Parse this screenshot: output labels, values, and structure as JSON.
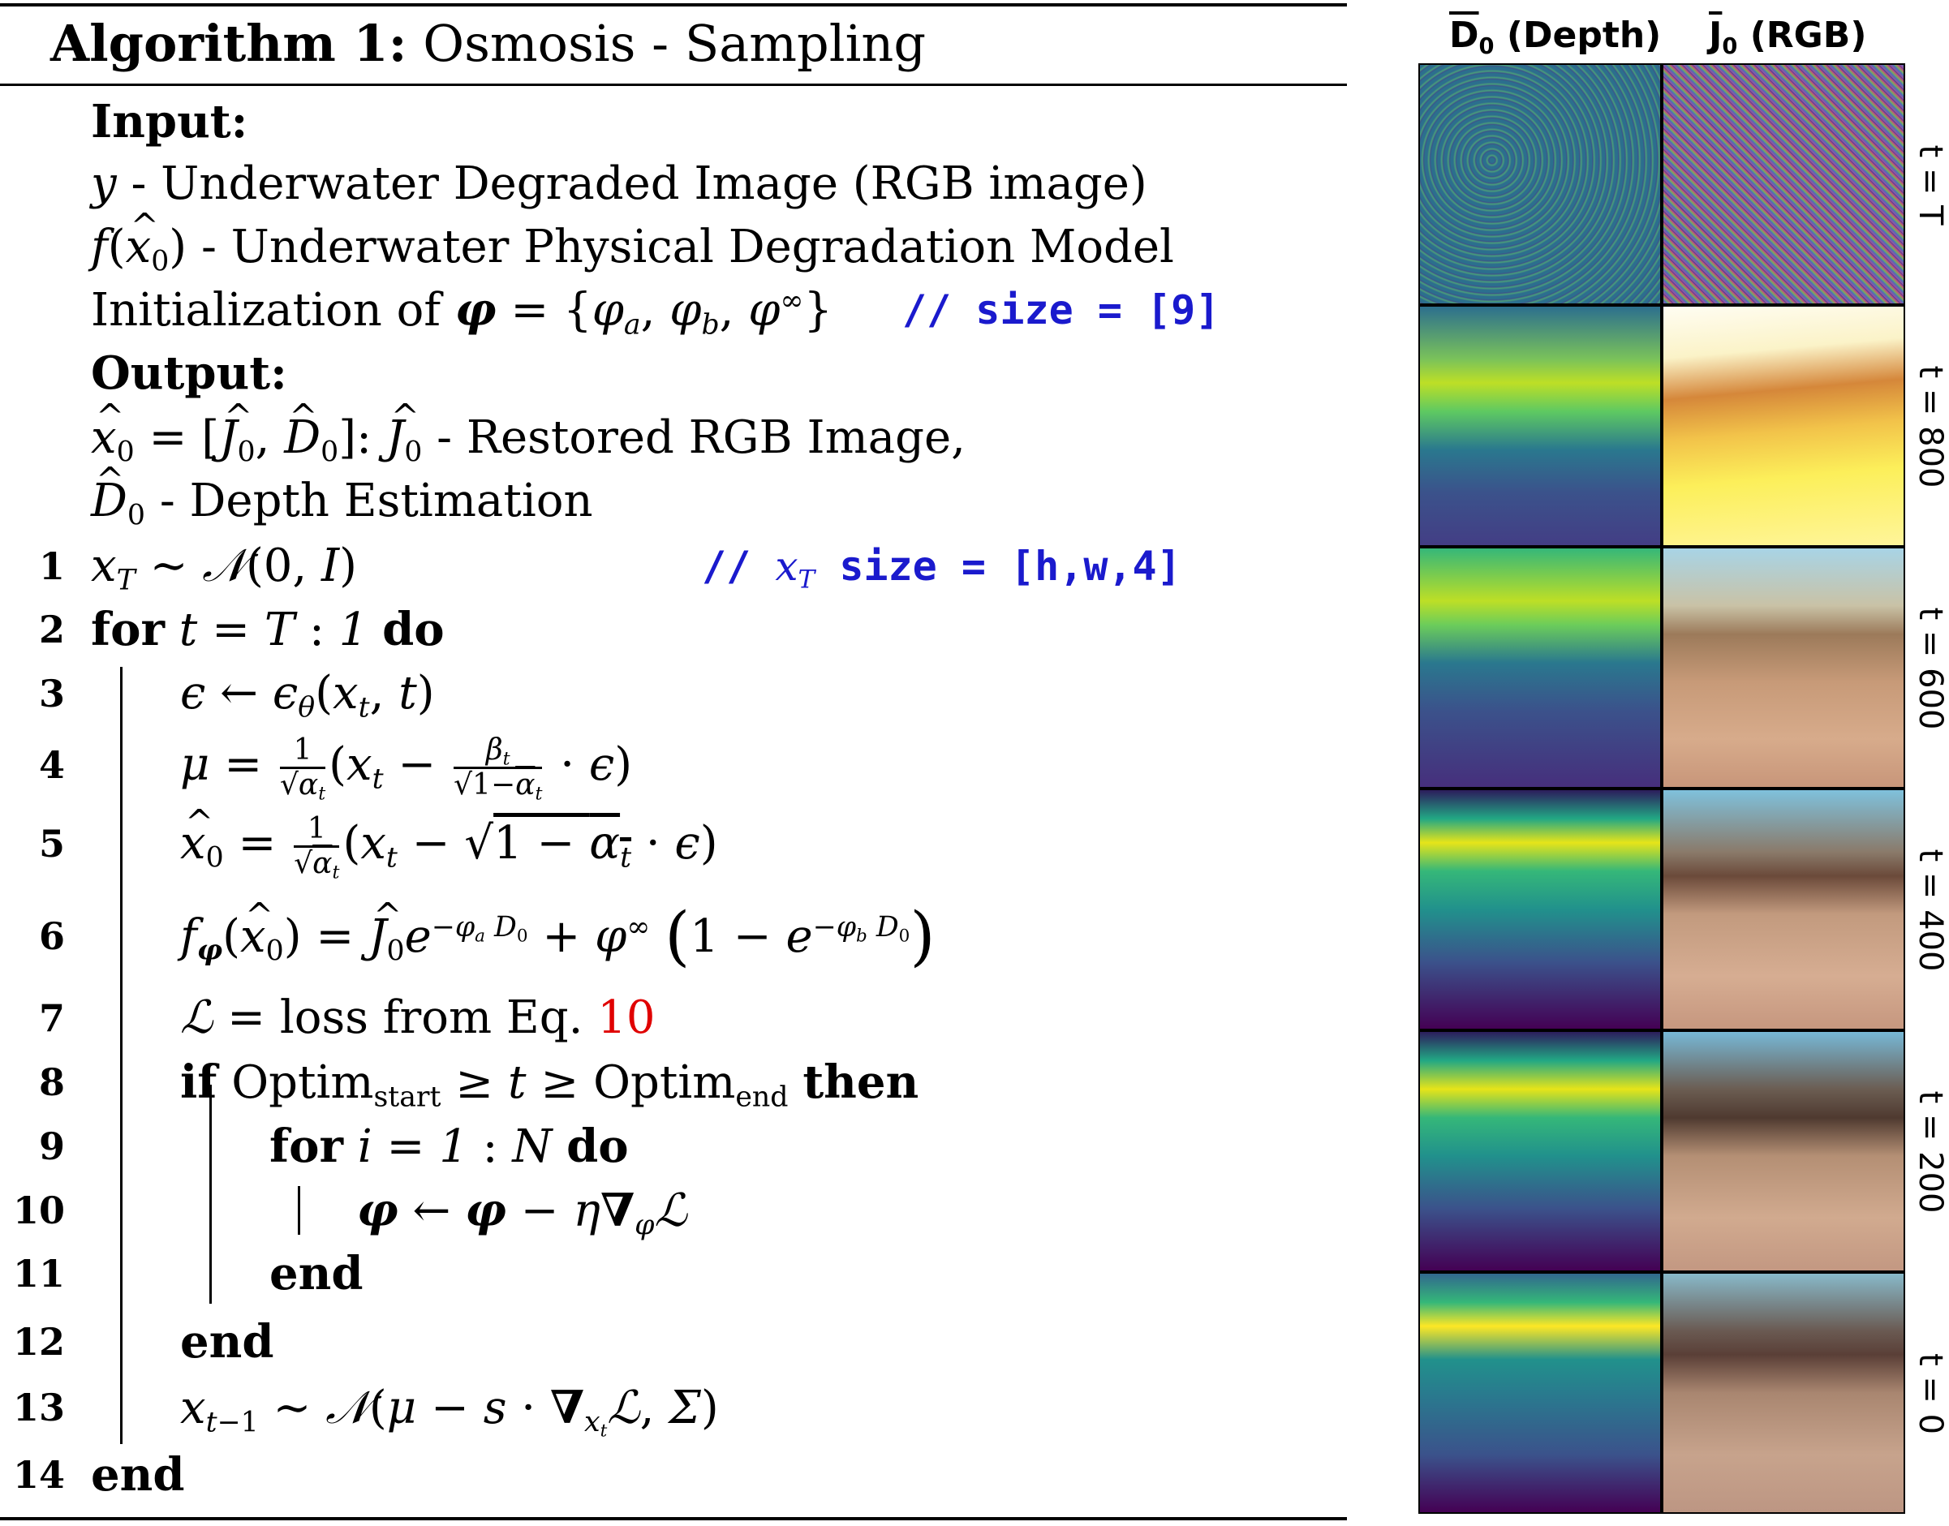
{
  "algorithm": {
    "title_prefix": "Algorithm 1:",
    "title_name": "Osmosis - Sampling",
    "input_label": "Input:",
    "input_y": "- Underwater Degraded Image (RGB image)",
    "input_f": "- Underwater Physical Degradation Model",
    "init_text": "Initialization of",
    "init_comment": "// size = [9]",
    "output_label": "Output:",
    "output_x0": "- Restored RGB Image,",
    "output_d0": "- Depth Estimation",
    "line1_comment_prefix": "//",
    "line1_comment_suffix": "size = [h,w,4]",
    "kw_for": "for",
    "kw_do": "do",
    "kw_if": "if",
    "kw_then": "then",
    "kw_end": "end",
    "line7_text": "= loss from Eq.",
    "line7_ref": "10",
    "optim": "Optim",
    "optim_start": "start",
    "optim_end": "end",
    "line_numbers": [
      "1",
      "2",
      "3",
      "4",
      "5",
      "6",
      "7",
      "8",
      "9",
      "10",
      "11",
      "12",
      "13",
      "14"
    ]
  },
  "panel": {
    "col_depth": "(Depth)",
    "col_rgb": "(RGB)",
    "col_depth_symbol": "D",
    "col_rgb_symbol": "J",
    "row_labels": [
      "t = T",
      "t = 800",
      "t = 600",
      "t = 400",
      "t = 200",
      "t = 0"
    ]
  },
  "colors": {
    "comment": "#1a1acd",
    "reference": "#e00000",
    "viridis_dark": "#440154",
    "viridis_mid": "#21918c",
    "viridis_light": "#fde725"
  }
}
